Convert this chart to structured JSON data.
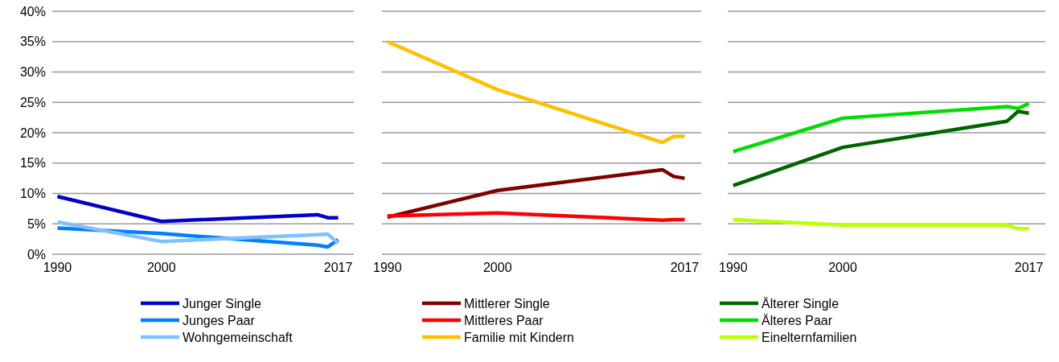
{
  "chart_data": [
    {
      "type": "line",
      "xlim": [
        1989.5,
        2018.5
      ],
      "xticks": [
        1990,
        2000,
        2017
      ],
      "ylim": [
        0,
        40
      ],
      "yticks": [
        {
          "value": 0,
          "label": "0%"
        },
        {
          "value": 5,
          "label": "5%"
        },
        {
          "value": 10,
          "label": "10%"
        },
        {
          "value": 15,
          "label": "15%"
        },
        {
          "value": 20,
          "label": "20%"
        },
        {
          "value": 25,
          "label": "25%"
        },
        {
          "value": 30,
          "label": "30%"
        },
        {
          "value": 35,
          "label": "35%"
        },
        {
          "value": 40,
          "label": "40%"
        }
      ],
      "grid": "y",
      "legend": "bottom",
      "x": [
        1990,
        2000,
        2015,
        2016,
        2017
      ],
      "series": [
        {
          "name": "Junger Single",
          "color": "#0000cc",
          "values": [
            9.5,
            5.4,
            6.5,
            6.0,
            6.0
          ]
        },
        {
          "name": "Junges Paar",
          "color": "#0080ff",
          "values": [
            4.3,
            3.4,
            1.5,
            1.2,
            2.4
          ]
        },
        {
          "name": "Wohngemeinschaft",
          "color": "#80c0ff",
          "values": [
            5.3,
            2.1,
            3.2,
            3.3,
            1.8
          ]
        }
      ]
    },
    {
      "type": "line",
      "xlim": [
        1989.5,
        2018.5
      ],
      "xticks": [
        1990,
        2000,
        2017
      ],
      "ylim": [
        0,
        40
      ],
      "yticks": [
        {
          "value": 0,
          "label": null
        },
        {
          "value": 5,
          "label": null
        },
        {
          "value": 10,
          "label": null
        },
        {
          "value": 15,
          "label": null
        },
        {
          "value": 20,
          "label": null
        },
        {
          "value": 25,
          "label": null
        },
        {
          "value": 30,
          "label": null
        },
        {
          "value": 35,
          "label": null
        },
        {
          "value": 40,
          "label": null
        }
      ],
      "grid": "y",
      "legend": "bottom",
      "tick_labels": "x",
      "x": [
        1990,
        2000,
        2015,
        2016,
        2017
      ],
      "series": [
        {
          "name": "Mittlerer Single",
          "color": "#800000",
          "values": [
            6.1,
            10.5,
            13.9,
            12.8,
            12.5
          ]
        },
        {
          "name": "Mittleres Paar",
          "color": "#ff0000",
          "values": [
            6.3,
            6.8,
            5.6,
            5.7,
            5.7
          ]
        },
        {
          "name": "Familie mit Kindern",
          "color": "#ffc000",
          "values": [
            35.0,
            27.1,
            18.4,
            19.4,
            19.4
          ]
        }
      ]
    },
    {
      "type": "line",
      "xlim": [
        1989.5,
        2018.5
      ],
      "xticks": [
        1990,
        2000,
        2017
      ],
      "ylim": [
        0,
        40
      ],
      "yticks": [
        {
          "value": 0,
          "label": null
        },
        {
          "value": 5,
          "label": null
        },
        {
          "value": 10,
          "label": null
        },
        {
          "value": 15,
          "label": null
        },
        {
          "value": 20,
          "label": null
        },
        {
          "value": 25,
          "label": null
        },
        {
          "value": 30,
          "label": null
        },
        {
          "value": 35,
          "label": null
        },
        {
          "value": 40,
          "label": null
        }
      ],
      "grid": "y",
      "legend": "bottom",
      "tick_labels": "x",
      "x": [
        1990,
        2000,
        2015,
        2016,
        2017
      ],
      "series": [
        {
          "name": "Älterer Single",
          "color": "#006400",
          "values": [
            11.3,
            17.6,
            21.9,
            23.5,
            23.2
          ]
        },
        {
          "name": "Älteres Paar",
          "color": "#00dd00",
          "values": [
            16.9,
            22.4,
            24.3,
            24.0,
            24.8
          ]
        },
        {
          "name": "Einelternfamilien",
          "color": "#bbff00",
          "values": [
            5.7,
            4.8,
            4.8,
            4.2,
            4.2
          ]
        }
      ]
    }
  ]
}
